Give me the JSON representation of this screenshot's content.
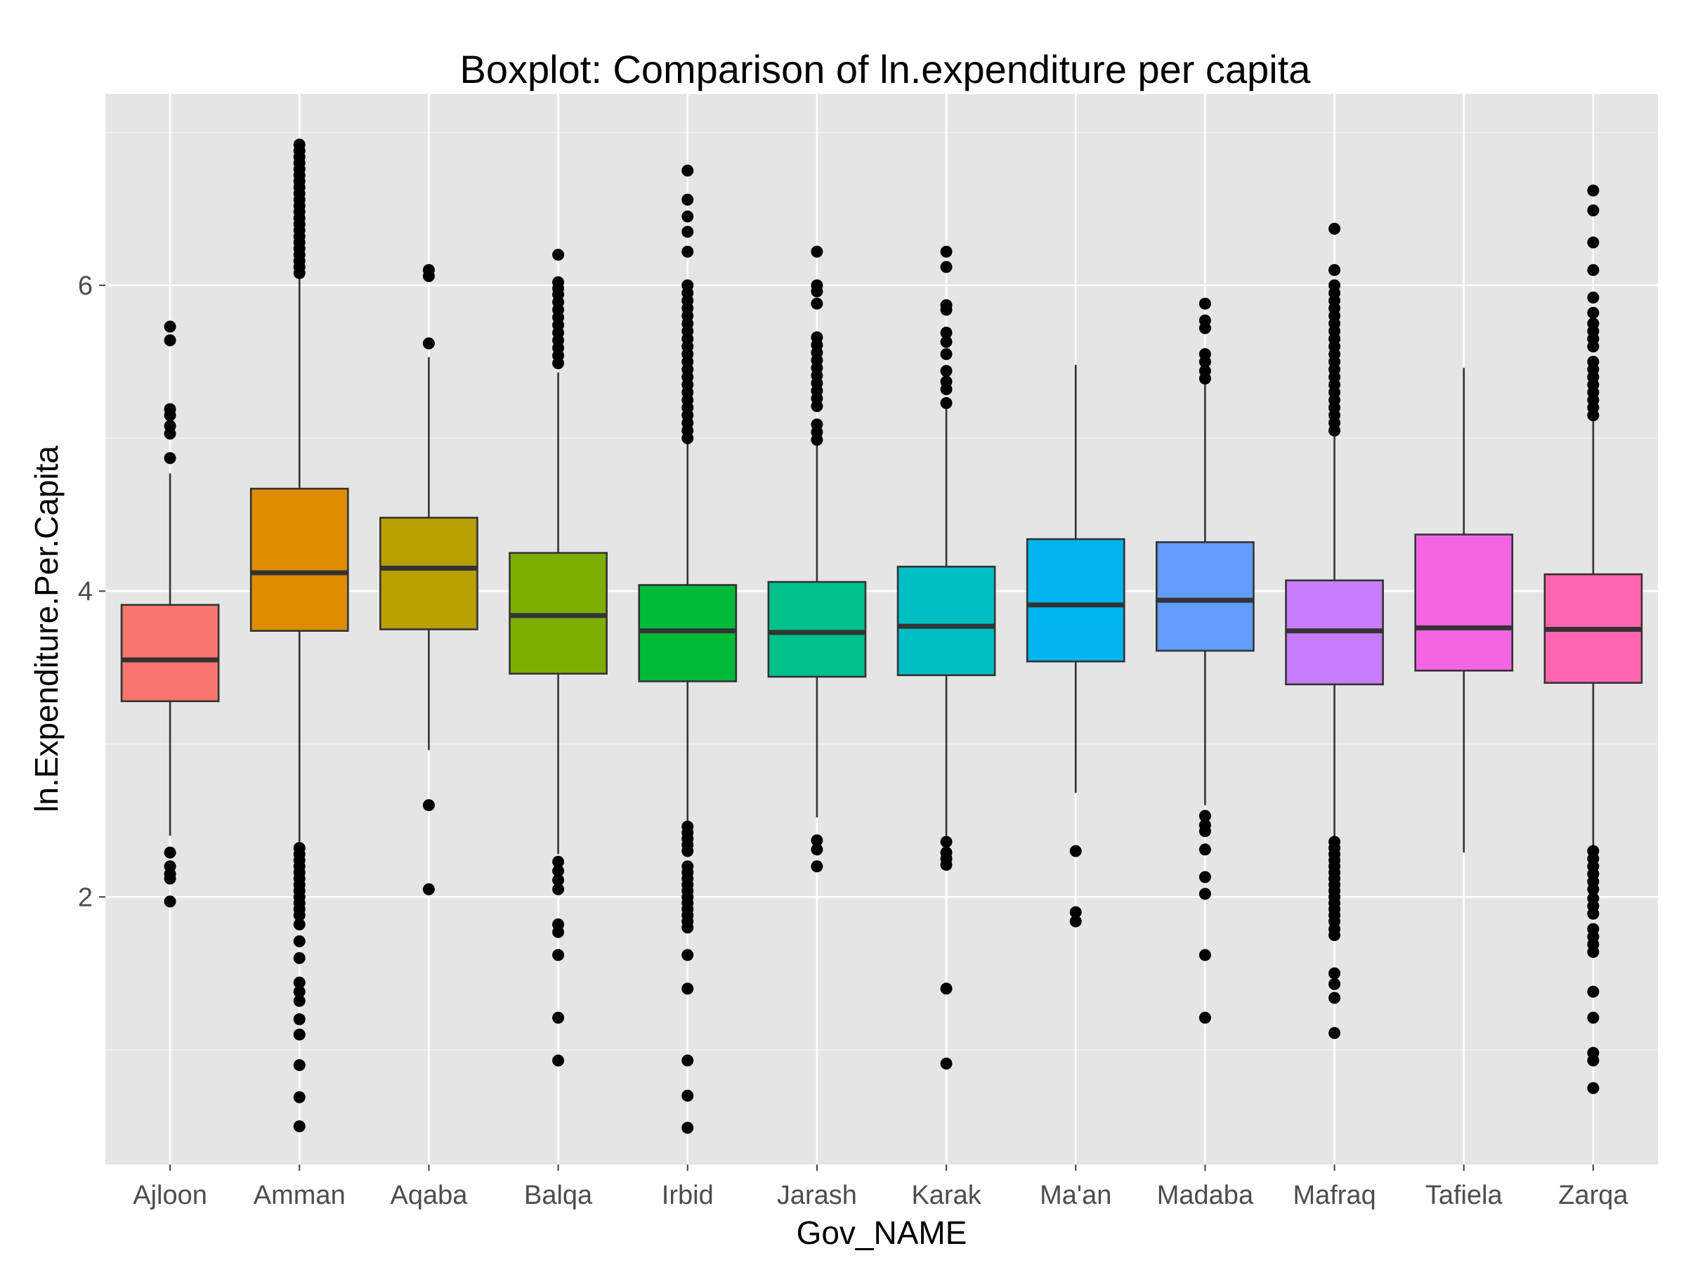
{
  "chart_data": {
    "type": "boxplot",
    "title": "Boxplot: Comparison of ln.expenditure per capita",
    "xlabel": "Gov_NAME",
    "ylabel": "ln.Expenditure.Per.Capita",
    "ylim": [
      0.25,
      7.25
    ],
    "y_ticks": [
      2,
      4,
      6
    ],
    "y_tick_labels": [
      "2",
      "4",
      "6"
    ],
    "grid": true,
    "legend": "none",
    "categories": [
      "Ajloon",
      "Amman",
      "Aqaba",
      "Balqa",
      "Irbid",
      "Jarash",
      "Karak",
      "Ma'an",
      "Madaba",
      "Mafraq",
      "Tafiela",
      "Zarqa"
    ],
    "colors": [
      "#F8766D",
      "#DE8C00",
      "#B79F00",
      "#7CAE00",
      "#00BA38",
      "#00C08B",
      "#00BFC4",
      "#00B4F0",
      "#619CFF",
      "#C77CFF",
      "#F564E3",
      "#FF64B0"
    ],
    "boxes": [
      {
        "name": "Ajloon",
        "lower": 2.4,
        "q1": 3.28,
        "median": 3.55,
        "q3": 3.91,
        "upper": 4.77,
        "outliers": [
          5.73,
          5.64,
          5.19,
          5.15,
          5.08,
          5.03,
          4.87,
          2.29,
          2.2,
          2.15,
          2.12,
          1.97
        ]
      },
      {
        "name": "Amman",
        "lower": 2.36,
        "q1": 3.74,
        "median": 4.12,
        "q3": 4.67,
        "upper": 6.05,
        "outliers": [
          6.92,
          6.88,
          6.84,
          6.8,
          6.76,
          6.72,
          6.68,
          6.64,
          6.6,
          6.56,
          6.52,
          6.48,
          6.44,
          6.4,
          6.36,
          6.32,
          6.28,
          6.24,
          6.2,
          6.16,
          6.12,
          6.08,
          2.32,
          2.28,
          2.24,
          2.2,
          2.16,
          2.12,
          2.08,
          2.04,
          2.0,
          1.96,
          1.92,
          1.88,
          1.82,
          1.71,
          1.6,
          1.44,
          1.38,
          1.32,
          1.2,
          1.1,
          0.9,
          0.69,
          0.5
        ]
      },
      {
        "name": "Aqaba",
        "lower": 2.96,
        "q1": 3.75,
        "median": 4.15,
        "q3": 4.48,
        "upper": 5.53,
        "outliers": [
          6.1,
          6.06,
          5.62,
          2.6,
          2.05
        ]
      },
      {
        "name": "Balqa",
        "lower": 2.28,
        "q1": 3.46,
        "median": 3.84,
        "q3": 4.25,
        "upper": 5.43,
        "outliers": [
          6.2,
          6.02,
          5.98,
          5.94,
          5.89,
          5.84,
          5.79,
          5.74,
          5.69,
          5.64,
          5.59,
          5.54,
          5.49,
          2.23,
          2.17,
          2.11,
          2.05,
          1.82,
          1.77,
          1.62,
          1.21,
          0.93
        ]
      },
      {
        "name": "Irbid",
        "lower": 2.5,
        "q1": 3.41,
        "median": 3.74,
        "q3": 4.04,
        "upper": 4.97,
        "outliers": [
          6.75,
          6.56,
          6.45,
          6.35,
          6.22,
          6.0,
          5.95,
          5.9,
          5.85,
          5.8,
          5.75,
          5.7,
          5.65,
          5.6,
          5.55,
          5.5,
          5.45,
          5.4,
          5.35,
          5.3,
          5.25,
          5.2,
          5.15,
          5.1,
          5.05,
          5.0,
          2.46,
          2.42,
          2.38,
          2.34,
          2.3,
          2.2,
          2.16,
          2.12,
          2.08,
          2.04,
          2.0,
          1.96,
          1.92,
          1.88,
          1.84,
          1.8,
          1.62,
          1.4,
          0.93,
          0.7,
          0.49
        ]
      },
      {
        "name": "Jarash",
        "lower": 2.52,
        "q1": 3.44,
        "median": 3.73,
        "q3": 4.06,
        "upper": 4.97,
        "outliers": [
          6.22,
          6.0,
          5.96,
          5.88,
          5.66,
          5.61,
          5.56,
          5.51,
          5.46,
          5.41,
          5.36,
          5.31,
          5.26,
          5.21,
          5.09,
          5.04,
          4.99,
          2.37,
          2.31,
          2.2
        ]
      },
      {
        "name": "Karak",
        "lower": 2.4,
        "q1": 3.45,
        "median": 3.77,
        "q3": 4.16,
        "upper": 5.2,
        "outliers": [
          6.22,
          6.12,
          5.87,
          5.84,
          5.69,
          5.63,
          5.55,
          5.44,
          5.37,
          5.32,
          5.23,
          2.36,
          2.29,
          2.25,
          2.21,
          1.4,
          0.91
        ]
      },
      {
        "name": "Ma'an",
        "lower": 2.68,
        "q1": 3.54,
        "median": 3.91,
        "q3": 4.34,
        "upper": 5.48,
        "outliers": [
          2.3,
          1.9,
          1.84
        ]
      },
      {
        "name": "Madaba",
        "lower": 2.6,
        "q1": 3.61,
        "median": 3.94,
        "q3": 4.32,
        "upper": 5.36,
        "outliers": [
          5.88,
          5.77,
          5.72,
          5.55,
          5.5,
          5.44,
          5.39,
          2.53,
          2.47,
          2.43,
          2.31,
          2.13,
          2.02,
          1.62,
          1.21
        ]
      },
      {
        "name": "Mafraq",
        "lower": 2.38,
        "q1": 3.39,
        "median": 3.74,
        "q3": 4.07,
        "upper": 5.03,
        "outliers": [
          6.37,
          6.1,
          6.0,
          5.95,
          5.9,
          5.85,
          5.8,
          5.75,
          5.7,
          5.65,
          5.6,
          5.55,
          5.5,
          5.45,
          5.4,
          5.35,
          5.3,
          5.25,
          5.2,
          5.15,
          5.1,
          5.05,
          2.36,
          2.32,
          2.28,
          2.24,
          2.2,
          2.16,
          2.12,
          2.08,
          2.04,
          2.0,
          1.96,
          1.92,
          1.88,
          1.84,
          1.79,
          1.75,
          1.5,
          1.43,
          1.34,
          1.11
        ]
      },
      {
        "name": "Tafiela",
        "lower": 2.29,
        "q1": 3.48,
        "median": 3.76,
        "q3": 4.37,
        "upper": 5.46,
        "outliers": []
      },
      {
        "name": "Zarqa",
        "lower": 2.33,
        "q1": 3.4,
        "median": 3.75,
        "q3": 4.11,
        "upper": 5.14,
        "outliers": [
          6.62,
          6.49,
          6.28,
          6.1,
          5.92,
          5.82,
          5.75,
          5.7,
          5.65,
          5.6,
          5.5,
          5.45,
          5.4,
          5.35,
          5.3,
          5.25,
          5.2,
          5.15,
          2.3,
          2.25,
          2.2,
          2.15,
          2.1,
          2.05,
          1.99,
          1.94,
          1.89,
          1.79,
          1.74,
          1.69,
          1.64,
          1.38,
          1.21,
          0.98,
          0.93,
          0.75
        ]
      }
    ]
  }
}
